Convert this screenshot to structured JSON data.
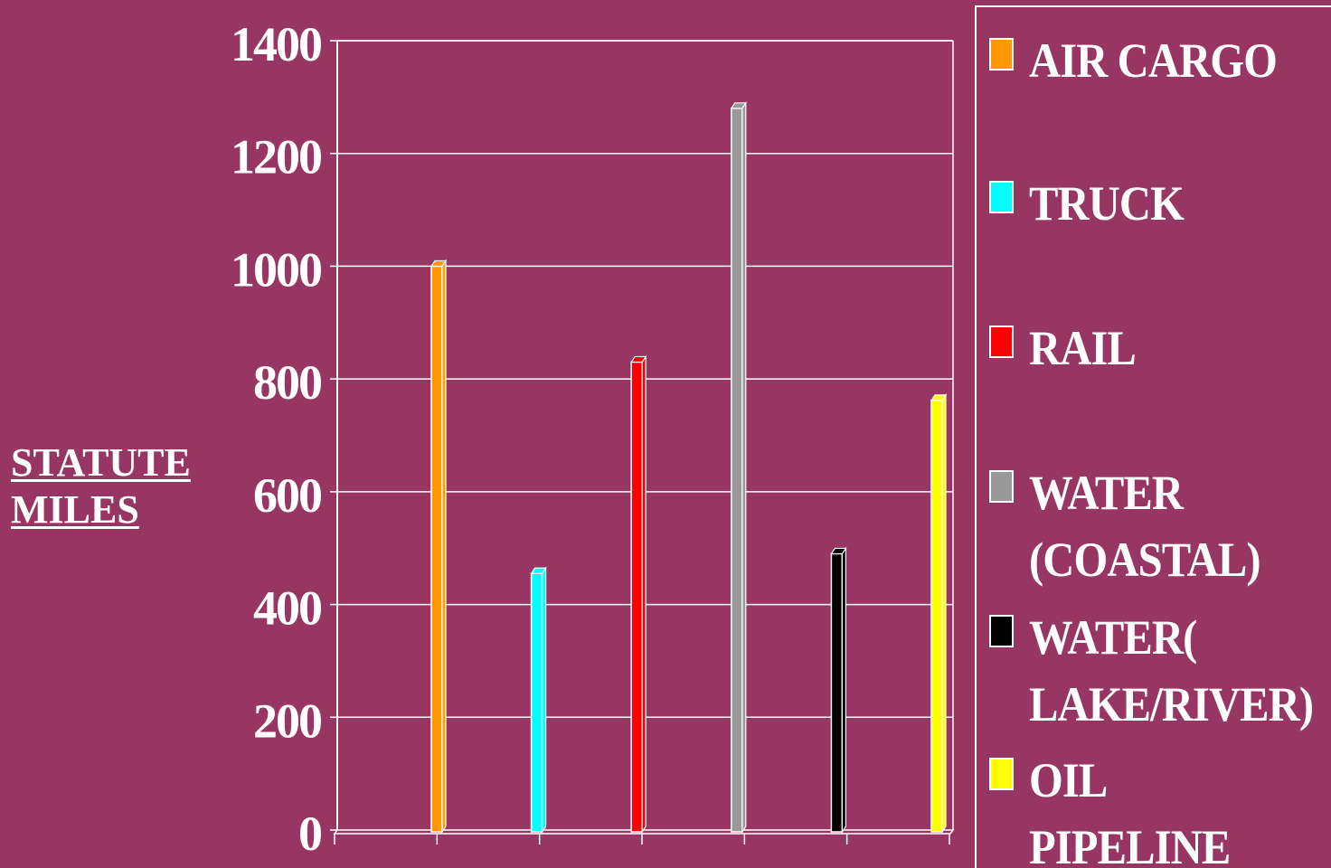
{
  "chart_data": {
    "type": "bar",
    "title": "",
    "ylabel_lines": [
      "STATUTE",
      "MILES"
    ],
    "xlabel": "",
    "ylim": [
      0,
      1400
    ],
    "yticks": [
      0,
      200,
      400,
      600,
      800,
      1000,
      1200,
      1400
    ],
    "grid": true,
    "legend_position": "right",
    "series": [
      {
        "name": "AIR CARGO",
        "color": "#FF9900",
        "value": 1000
      },
      {
        "name": "TRUCK",
        "color": "#00FFFF",
        "value": 455
      },
      {
        "name": "RAIL",
        "color": "#FF0000",
        "value": 830
      },
      {
        "name": "WATER\n(COASTAL)",
        "color": "#999999",
        "value": 1280
      },
      {
        "name": "WATER(\nLAKE/RIVER)",
        "color": "#000000",
        "value": 490
      },
      {
        "name": "OIL PIPELINE",
        "color": "#FFFF00",
        "value": 762
      }
    ]
  },
  "colors": {
    "background": "#983663",
    "axis": "#FFFFFF",
    "text": "#FFFFFF"
  }
}
